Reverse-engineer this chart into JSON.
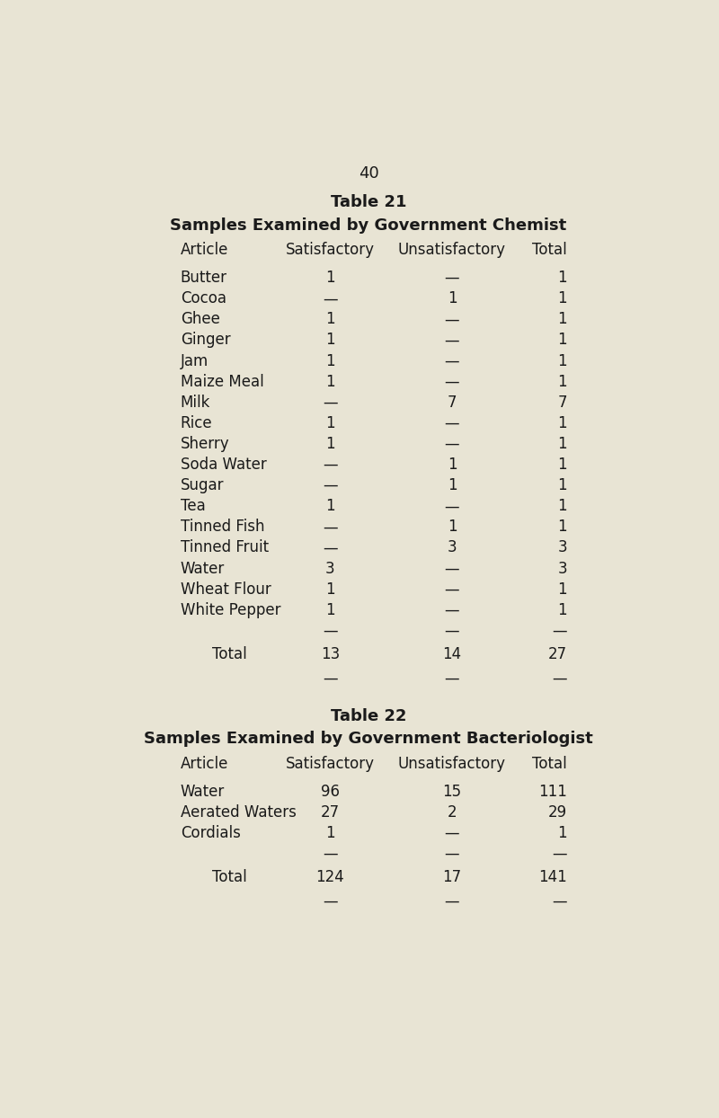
{
  "page_number": "40",
  "bg_color": "#e8e4d4",
  "text_color": "#1a1a1a",
  "table21_title": "Table 21",
  "table21_subtitle": "Samples Examined by Government Chemist",
  "table21_headers": [
    "Article",
    "Satisfactory",
    "Unsatisfactory",
    "Total"
  ],
  "table21_rows": [
    [
      "Butter",
      "1",
      "—",
      "1"
    ],
    [
      "Cocoa",
      "—",
      "1",
      "1"
    ],
    [
      "Ghee",
      "1",
      "—",
      "1"
    ],
    [
      "Ginger",
      "1",
      "—",
      "1"
    ],
    [
      "Jam",
      "1",
      "—",
      "1"
    ],
    [
      "Maize Meal",
      "1",
      "—",
      "1"
    ],
    [
      "Milk",
      "—",
      "7",
      "7"
    ],
    [
      "Rice",
      "1",
      "—",
      "1"
    ],
    [
      "Sherry",
      "1",
      "—",
      "1"
    ],
    [
      "Soda Water",
      "—",
      "1",
      "1"
    ],
    [
      "Sugar",
      "—",
      "1",
      "1"
    ],
    [
      "Tea",
      "1",
      "—",
      "1"
    ],
    [
      "Tinned Fish",
      "—",
      "1",
      "1"
    ],
    [
      "Tinned Fruit",
      "—",
      "3",
      "3"
    ],
    [
      "Water",
      "3",
      "—",
      "3"
    ],
    [
      "Wheat Flour",
      "1",
      "—",
      "1"
    ],
    [
      "White Pepper",
      "1",
      "—",
      "1"
    ]
  ],
  "table21_sep_row": [
    "—",
    "—",
    "—"
  ],
  "table21_total_row": [
    "Total",
    "13",
    "14",
    "27"
  ],
  "table21_bot_row": [
    "—",
    "—",
    "—"
  ],
  "table22_title": "Table 22",
  "table22_subtitle": "Samples Examined by Government Bacteriologist",
  "table22_headers": [
    "Article",
    "Satisfactory",
    "Unsatisfactory",
    "Total"
  ],
  "table22_rows": [
    [
      "Water",
      "96",
      "15",
      "111"
    ],
    [
      "Aerated Waters",
      "27",
      "2",
      "29"
    ],
    [
      "Cordials",
      "1",
      "—",
      "1"
    ]
  ],
  "table22_sep_row": [
    "—",
    "—",
    "—"
  ],
  "table22_total_row": [
    "Total",
    "124",
    "17",
    "141"
  ],
  "table22_bot_row": [
    "—",
    "—",
    "—"
  ],
  "page_num_fontsize": 13,
  "title_fontsize": 13,
  "subtitle_fontsize": 13,
  "header_fontsize": 12,
  "body_fontsize": 12
}
